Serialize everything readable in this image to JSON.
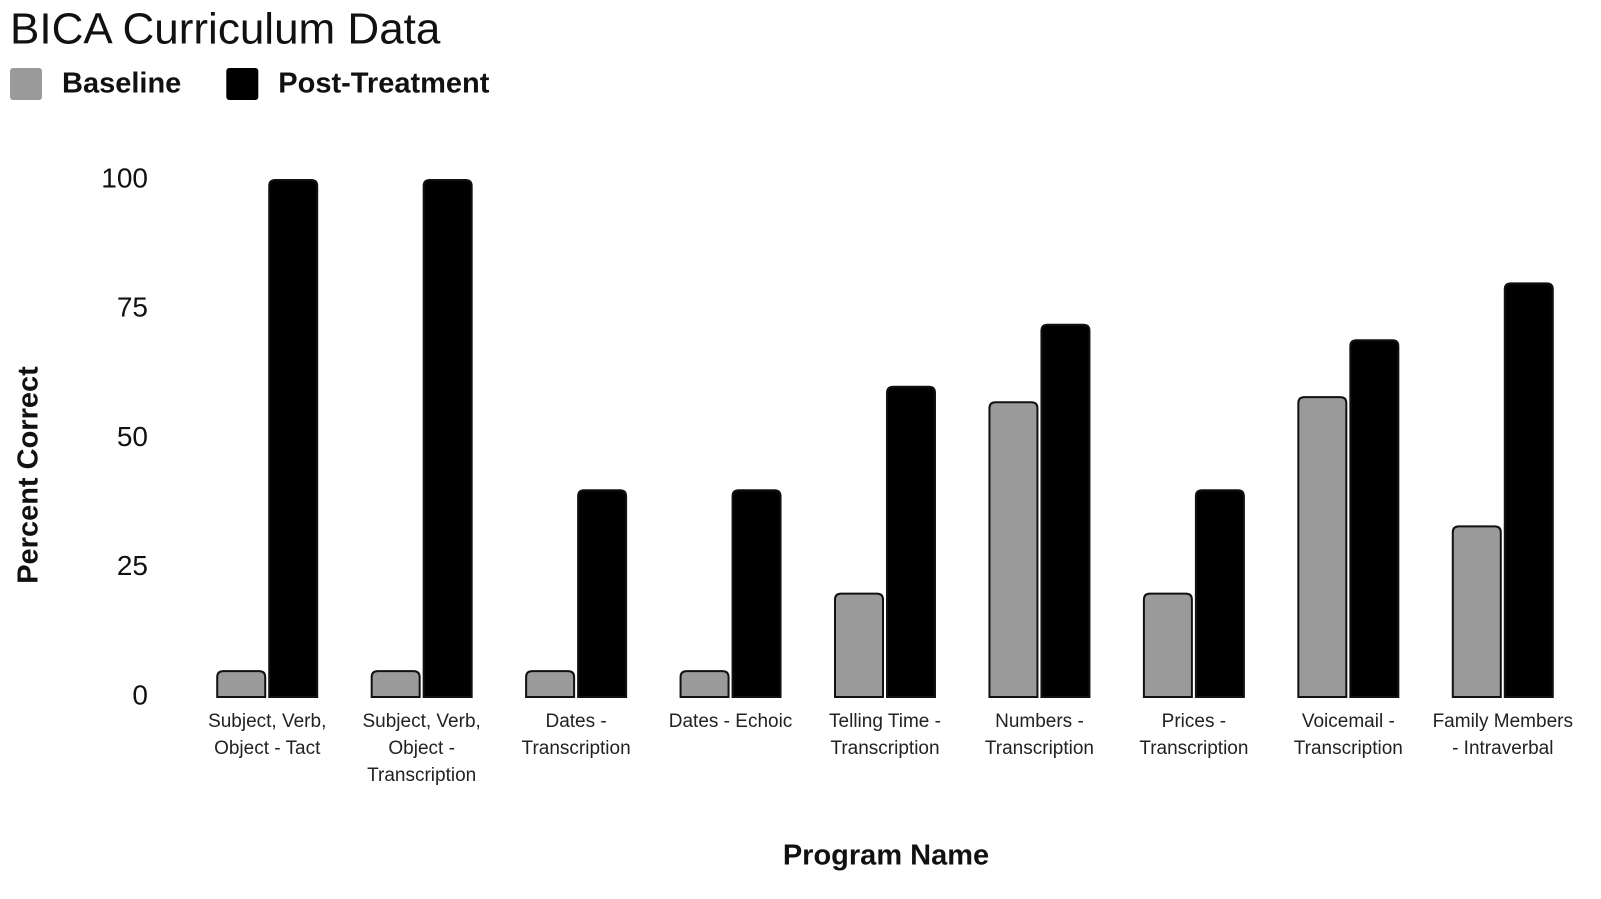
{
  "chart_data": {
    "type": "bar",
    "title": "BICA Curriculum Data",
    "x_label": "Program Name",
    "y_label": "Percent Correct",
    "categories": [
      "Subject, Verb, Object - Tact",
      "Subject, Verb, Object - Transcription",
      "Dates - Transcription",
      "Dates - Echoic",
      "Telling Time - Transcription",
      "Numbers - Transcription",
      "Prices - Transcription",
      "Voicemail - Transcription",
      "Family Members - Intraverbal"
    ],
    "series": [
      {
        "name": "Baseline",
        "color": "#9a9a9a",
        "values": [
          5,
          5,
          5,
          5,
          20,
          57,
          20,
          58,
          33
        ]
      },
      {
        "name": "Post-Treatment",
        "color": "#000000",
        "values": [
          100,
          100,
          40,
          40,
          60,
          72,
          40,
          69,
          80
        ]
      }
    ],
    "ylim": [
      0,
      100
    ],
    "yticks": [
      0,
      25,
      50,
      75,
      100
    ],
    "grid": false,
    "legend": "top-left"
  }
}
